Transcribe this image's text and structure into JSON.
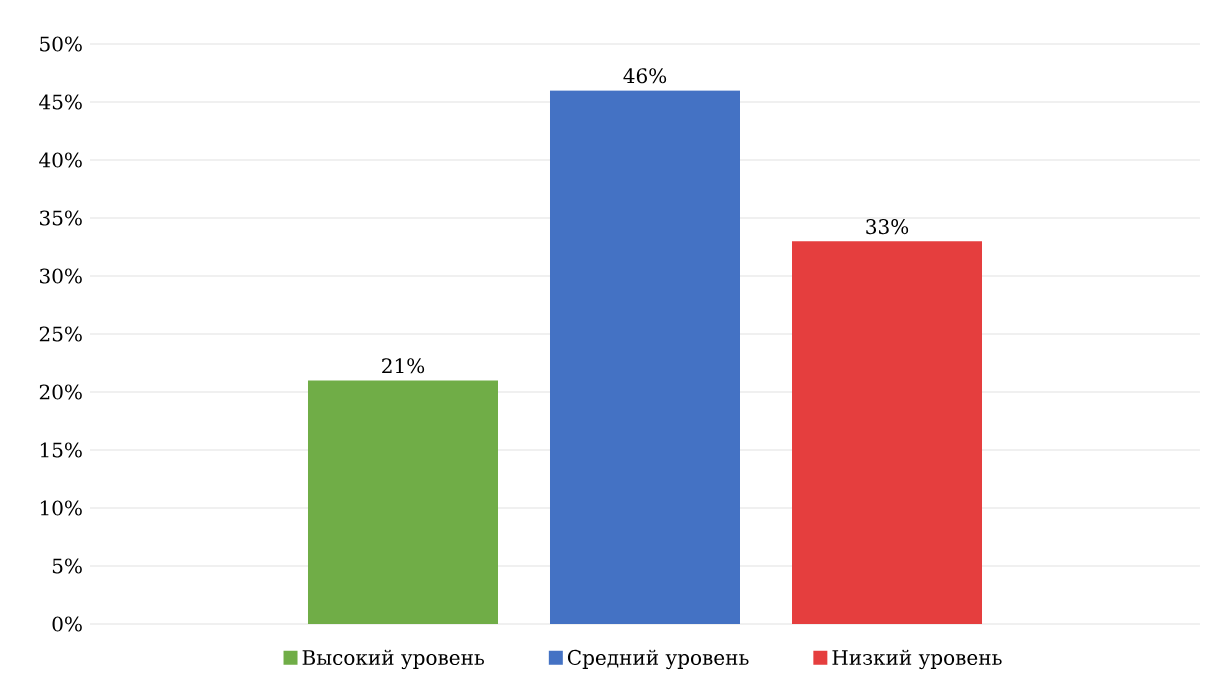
{
  "chart_data": {
    "type": "bar",
    "categories": [
      null
    ],
    "series": [
      {
        "name": "Высокий уровень",
        "color": "#70ad47",
        "values": [
          21
        ],
        "value_labels": [
          "21%"
        ]
      },
      {
        "name": "Средний уровень",
        "color": "#4472c4",
        "values": [
          46
        ],
        "value_labels": [
          "46%"
        ]
      },
      {
        "name": "Низкий уровень",
        "color": "#e53e3e",
        "values": [
          33
        ],
        "value_labels": [
          "33%"
        ]
      }
    ],
    "ylim": [
      0,
      50
    ],
    "yticks": [
      {
        "value": 0,
        "label": "0%"
      },
      {
        "value": 5,
        "label": "5%"
      },
      {
        "value": 10,
        "label": "10%"
      },
      {
        "value": 15,
        "label": "15%"
      },
      {
        "value": 20,
        "label": "20%"
      },
      {
        "value": 25,
        "label": "25%"
      },
      {
        "value": 30,
        "label": "30%"
      },
      {
        "value": 35,
        "label": "35%"
      },
      {
        "value": 40,
        "label": "40%"
      },
      {
        "value": 45,
        "label": "45%"
      },
      {
        "value": 50,
        "label": "50%"
      }
    ],
    "grid": "y",
    "legend": "bottom"
  }
}
